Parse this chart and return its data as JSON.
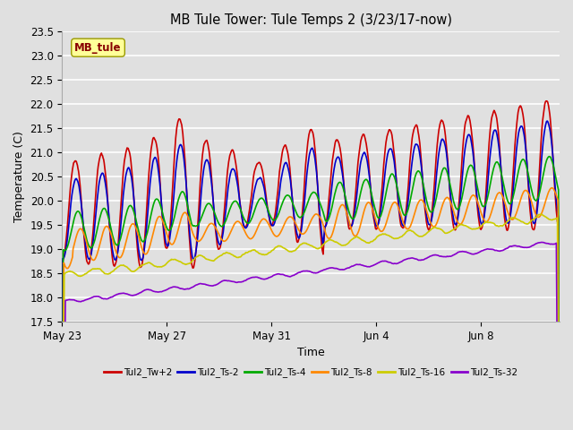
{
  "title": "MB Tule Tower: Tule Temps 2 (3/23/17-now)",
  "xlabel": "Time",
  "ylabel": "Temperature (C)",
  "ylim": [
    17.5,
    23.5
  ],
  "yticks": [
    17.5,
    18.0,
    18.5,
    19.0,
    19.5,
    20.0,
    20.5,
    21.0,
    21.5,
    22.0,
    22.5,
    23.0,
    23.5
  ],
  "bg_color": "#e0e0e0",
  "label_box": "MB_tule",
  "label_box_bg": "#ffff99",
  "label_box_text_color": "#880000",
  "xtick_labels": [
    "May 23",
    "May 27",
    "May 31",
    "Jun 4",
    "Jun 8"
  ],
  "xtick_positions": [
    0,
    4,
    8,
    12,
    16
  ],
  "total_days": 19,
  "lines": [
    {
      "label": "Tul2_Tw+2",
      "color": "#cc0000",
      "linewidth": 1.2
    },
    {
      "label": "Tul2_Ts-2",
      "color": "#0000cc",
      "linewidth": 1.2
    },
    {
      "label": "Tul2_Ts-4",
      "color": "#00aa00",
      "linewidth": 1.2
    },
    {
      "label": "Tul2_Ts-8",
      "color": "#ff8800",
      "linewidth": 1.2
    },
    {
      "label": "Tul2_Ts-16",
      "color": "#cccc00",
      "linewidth": 1.2
    },
    {
      "label": "Tul2_Ts-32",
      "color": "#8800cc",
      "linewidth": 1.2
    }
  ]
}
